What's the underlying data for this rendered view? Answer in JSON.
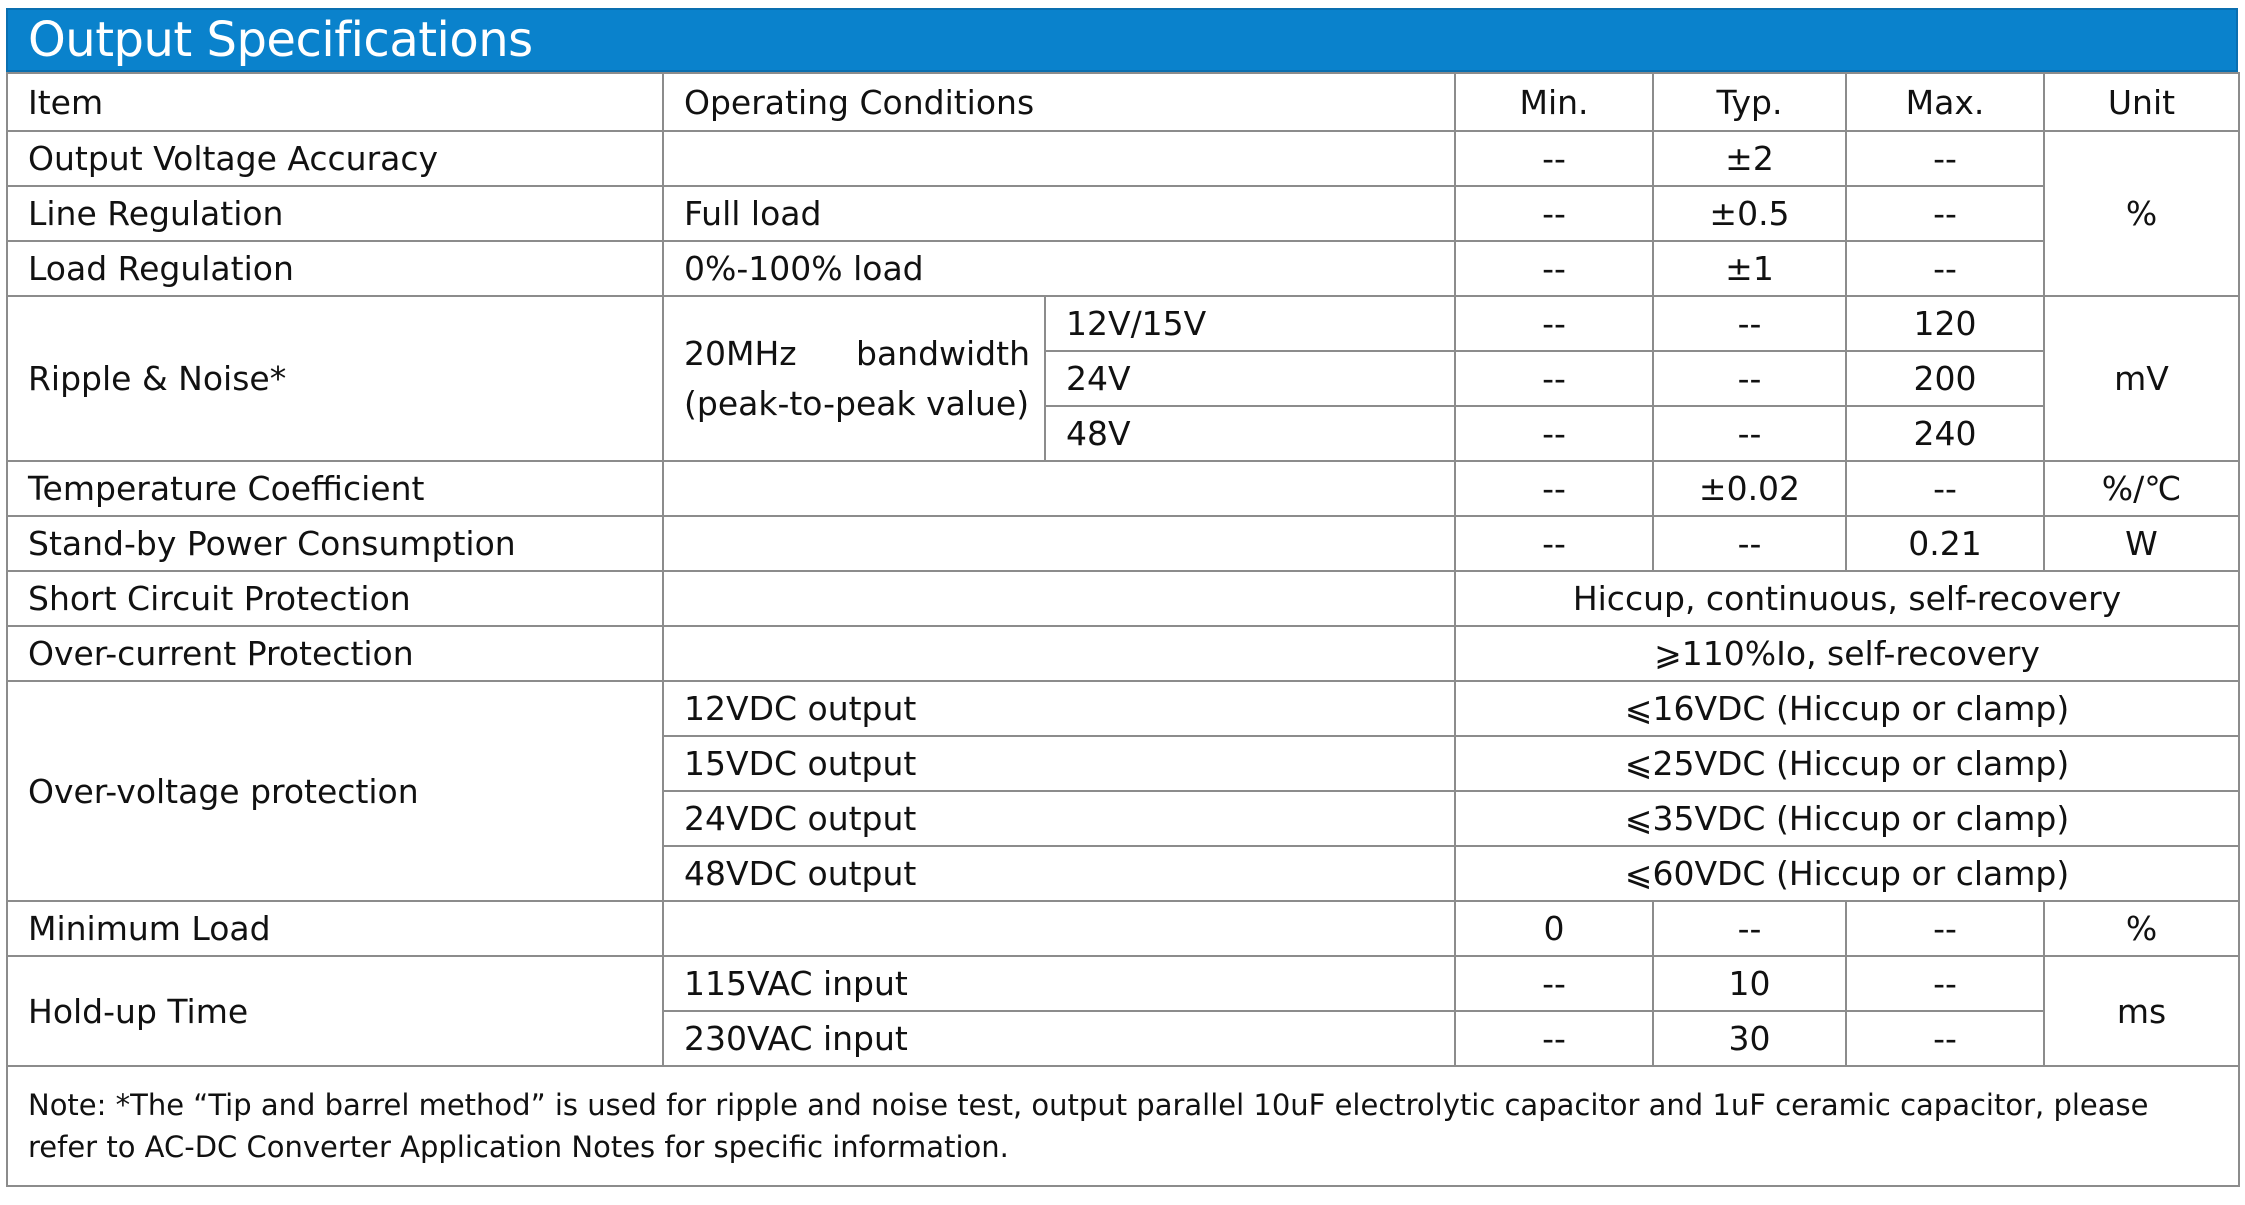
{
  "title": "Output Specifications",
  "headers": {
    "item": "Item",
    "conditions": "Operating Conditions",
    "min": "Min.",
    "typ": "Typ.",
    "max": "Max.",
    "unit": "Unit"
  },
  "rows": {
    "voltage_accuracy": {
      "item": "Output Voltage Accuracy",
      "min": "--",
      "typ": "±2",
      "max": "--"
    },
    "line_regulation": {
      "item": "Line Regulation",
      "conditions": "Full load",
      "min": "--",
      "typ": "±0.5",
      "max": "--"
    },
    "load_regulation": {
      "item": "Load Regulation",
      "conditions": "0%-100% load",
      "min": "--",
      "typ": "±1",
      "max": "--"
    },
    "regulation_unit": "%",
    "ripple": {
      "item": "Ripple & Noise*",
      "conditions": "20MHz bandwidth (peak-to-peak value)",
      "unit": "mV",
      "sub": [
        {
          "voltage": "12V/15V",
          "min": "--",
          "typ": "--",
          "max": "120"
        },
        {
          "voltage": "24V",
          "min": "--",
          "typ": "--",
          "max": "200"
        },
        {
          "voltage": "48V",
          "min": "--",
          "typ": "--",
          "max": "240"
        }
      ]
    },
    "temp_coeff": {
      "item": "Temperature Coefficient",
      "min": "--",
      "typ": "±0.02",
      "max": "--",
      "unit": "%/℃"
    },
    "standby": {
      "item": "Stand-by Power Consumption",
      "min": "--",
      "typ": "--",
      "max": "0.21",
      "unit": "W"
    },
    "short_circuit": {
      "item": "Short Circuit Protection",
      "value": "Hiccup, continuous, self-recovery"
    },
    "over_current": {
      "item": "Over-current Protection",
      "value": "⩾110%Io, self-recovery"
    },
    "over_voltage": {
      "item": "Over-voltage protection",
      "sub": [
        {
          "condition": "12VDC output",
          "value": "⩽16VDC (Hiccup or clamp)"
        },
        {
          "condition": "15VDC output",
          "value": "⩽25VDC (Hiccup or clamp)"
        },
        {
          "condition": "24VDC output",
          "value": "⩽35VDC (Hiccup or clamp)"
        },
        {
          "condition": "48VDC output",
          "value": "⩽60VDC (Hiccup or clamp)"
        }
      ]
    },
    "min_load": {
      "item": "Minimum Load",
      "min": "0",
      "typ": "--",
      "max": "--",
      "unit": "%"
    },
    "hold_up": {
      "item": "Hold-up Time",
      "unit": "ms",
      "sub": [
        {
          "condition": "115VAC input",
          "min": "--",
          "typ": "10",
          "max": "--"
        },
        {
          "condition": "230VAC input",
          "min": "--",
          "typ": "30",
          "max": "--"
        }
      ]
    }
  },
  "note": "Note: *The “Tip and barrel method” is used for ripple and noise test, output parallel 10uF electrolytic capacitor and 1uF ceramic capacitor, please refer to AC-DC Converter Application Notes for specific information."
}
